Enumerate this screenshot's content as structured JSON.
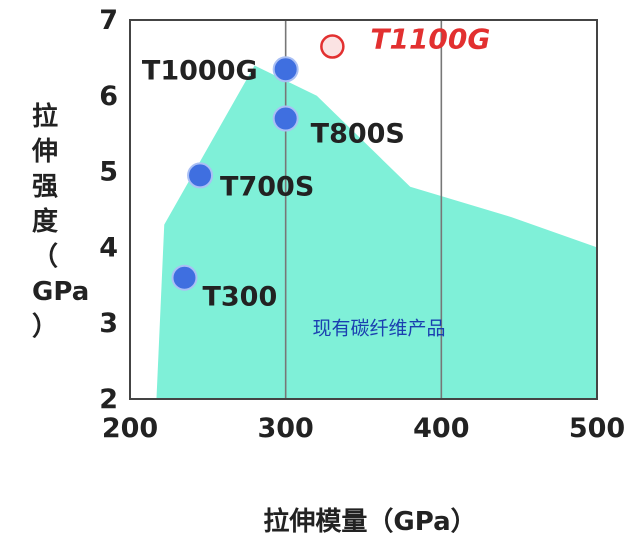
{
  "chart_data": {
    "type": "scatter",
    "title": "",
    "xlabel": "拉伸模量（GPa）",
    "ylabel": "拉伸强度（GPa）",
    "xlim": [
      200,
      500
    ],
    "ylim": [
      2,
      7
    ],
    "x_ticks": [
      "200",
      "300",
      "400",
      "500"
    ],
    "y_ticks": [
      "2",
      "3",
      "4",
      "5",
      "6",
      "7"
    ],
    "grid": true,
    "points": [
      {
        "label": "T300",
        "x": 235,
        "y": 3.6
      },
      {
        "label": "T700S",
        "x": 245,
        "y": 4.95
      },
      {
        "label": "T800S",
        "x": 300,
        "y": 5.7
      },
      {
        "label": "T1000G",
        "x": 300,
        "y": 6.35
      },
      {
        "label": "T1100G",
        "x": 330,
        "y": 6.65,
        "highlight": true
      }
    ],
    "area": {
      "label": "现有碳纤维产品",
      "color": "#7ff0d8",
      "polygon": [
        [
          217,
          2.0
        ],
        [
          222,
          4.3
        ],
        [
          280,
          6.4
        ],
        [
          320,
          6.0
        ],
        [
          380,
          4.8
        ],
        [
          445,
          4.4
        ],
        [
          500,
          4.0
        ],
        [
          500,
          2.0
        ]
      ]
    },
    "colors": {
      "point": "#3f6fe0",
      "highlight": "#e23030"
    }
  }
}
